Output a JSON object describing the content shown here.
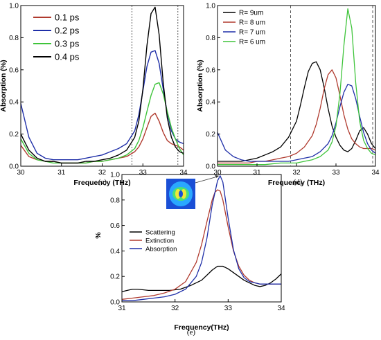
{
  "chart_data": [
    {
      "panel_label": "(c)",
      "type": "line",
      "xlabel": "Frequency (THz)",
      "ylabel": "Absorption (%)",
      "xlim": [
        30,
        34
      ],
      "ylim": [
        0,
        1.0
      ],
      "xticks": [
        "30",
        "31",
        "32",
        "33",
        "34"
      ],
      "yticks": [
        "0.0",
        "0.2",
        "0.4",
        "0.6",
        "0.8",
        "1.0"
      ],
      "reference_lines_x": [
        32.73,
        33.86
      ],
      "legend_position": "top-left",
      "series": [
        {
          "name": "0.1 ps",
          "color": "#b03a2e",
          "x": [
            30,
            30.2,
            30.4,
            30.6,
            30.8,
            31,
            31.2,
            31.4,
            31.6,
            31.8,
            32,
            32.2,
            32.4,
            32.6,
            32.8,
            32.9,
            33,
            33.1,
            33.2,
            33.3,
            33.4,
            33.5,
            33.6,
            33.7,
            33.8,
            33.9,
            34
          ],
          "y": [
            0.13,
            0.06,
            0.04,
            0.03,
            0.03,
            0.02,
            0.02,
            0.02,
            0.02,
            0.03,
            0.03,
            0.04,
            0.05,
            0.06,
            0.09,
            0.12,
            0.17,
            0.24,
            0.31,
            0.33,
            0.28,
            0.21,
            0.16,
            0.14,
            0.13,
            0.12,
            0.1
          ]
        },
        {
          "name": "0.2 ps",
          "color": "#1f2fa8",
          "x": [
            30,
            30.2,
            30.4,
            30.6,
            30.8,
            31,
            31.2,
            31.4,
            31.6,
            31.8,
            32,
            32.2,
            32.4,
            32.6,
            32.8,
            32.9,
            33,
            33.1,
            33.2,
            33.3,
            33.4,
            33.5,
            33.6,
            33.7,
            33.8,
            33.9,
            34
          ],
          "y": [
            0.39,
            0.18,
            0.08,
            0.05,
            0.04,
            0.04,
            0.04,
            0.04,
            0.05,
            0.06,
            0.07,
            0.09,
            0.11,
            0.14,
            0.22,
            0.32,
            0.47,
            0.62,
            0.71,
            0.72,
            0.64,
            0.48,
            0.33,
            0.22,
            0.17,
            0.15,
            0.14
          ]
        },
        {
          "name": "0.3 ps",
          "color": "#3ec43a",
          "x": [
            30,
            30.2,
            30.4,
            30.6,
            30.8,
            31,
            31.2,
            31.4,
            31.6,
            31.8,
            32,
            32.2,
            32.4,
            32.6,
            32.8,
            32.9,
            33,
            33.1,
            33.2,
            33.3,
            33.4,
            33.5,
            33.6,
            33.7,
            33.8,
            33.9,
            34
          ],
          "y": [
            0.17,
            0.08,
            0.04,
            0.03,
            0.02,
            0.02,
            0.02,
            0.02,
            0.02,
            0.03,
            0.03,
            0.04,
            0.05,
            0.07,
            0.11,
            0.16,
            0.24,
            0.34,
            0.44,
            0.51,
            0.52,
            0.45,
            0.34,
            0.24,
            0.17,
            0.11,
            0.07
          ]
        },
        {
          "name": "0.4 ps",
          "color": "#000000",
          "x": [
            30,
            30.2,
            30.4,
            30.6,
            30.8,
            31,
            31.2,
            31.4,
            31.6,
            31.8,
            32,
            32.2,
            32.4,
            32.6,
            32.8,
            32.9,
            33,
            33.1,
            33.2,
            33.3,
            33.4,
            33.5,
            33.6,
            33.7,
            33.8,
            33.9,
            34
          ],
          "y": [
            0.2,
            0.1,
            0.05,
            0.03,
            0.03,
            0.02,
            0.02,
            0.02,
            0.03,
            0.03,
            0.04,
            0.05,
            0.07,
            0.1,
            0.18,
            0.28,
            0.48,
            0.75,
            0.95,
            0.99,
            0.82,
            0.52,
            0.3,
            0.18,
            0.12,
            0.09,
            0.08
          ]
        }
      ]
    },
    {
      "panel_label": "(d)",
      "type": "line",
      "xlabel": "Frequency (THz)",
      "ylabel": "Absorption (%)",
      "xlim": [
        30,
        34
      ],
      "ylim": [
        0,
        1.0
      ],
      "xticks": [
        "30",
        "31",
        "32",
        "33",
        "34"
      ],
      "yticks": [
        "0.0",
        "0.2",
        "0.4",
        "0.6",
        "0.8",
        "1.0"
      ],
      "reference_lines_x": [
        31.85,
        33.93
      ],
      "legend_position": "top-left",
      "series": [
        {
          "name": "R= 9um",
          "color": "#000000",
          "x": [
            30,
            30.2,
            30.4,
            30.6,
            30.8,
            31,
            31.2,
            31.4,
            31.6,
            31.8,
            32,
            32.1,
            32.2,
            32.3,
            32.4,
            32.5,
            32.6,
            32.7,
            32.8,
            32.9,
            33,
            33.1,
            33.2,
            33.3,
            33.4,
            33.5,
            33.6,
            33.7,
            33.8,
            33.9,
            34
          ],
          "y": [
            0.03,
            0.03,
            0.03,
            0.03,
            0.04,
            0.05,
            0.07,
            0.09,
            0.12,
            0.18,
            0.28,
            0.38,
            0.49,
            0.59,
            0.64,
            0.65,
            0.6,
            0.49,
            0.36,
            0.25,
            0.18,
            0.13,
            0.1,
            0.09,
            0.11,
            0.16,
            0.22,
            0.24,
            0.2,
            0.14,
            0.11
          ]
        },
        {
          "name": "R= 8 um",
          "color": "#b03a2e",
          "x": [
            30,
            30.2,
            30.4,
            30.6,
            30.8,
            31,
            31.2,
            31.4,
            31.6,
            31.8,
            32,
            32.2,
            32.4,
            32.5,
            32.6,
            32.7,
            32.8,
            32.9,
            33,
            33.1,
            33.2,
            33.3,
            33.4,
            33.5,
            33.6,
            33.7,
            33.8,
            33.9,
            34
          ],
          "y": [
            0.02,
            0.02,
            0.02,
            0.02,
            0.02,
            0.03,
            0.03,
            0.04,
            0.05,
            0.06,
            0.08,
            0.12,
            0.19,
            0.26,
            0.36,
            0.48,
            0.57,
            0.6,
            0.55,
            0.44,
            0.32,
            0.23,
            0.17,
            0.14,
            0.12,
            0.11,
            0.11,
            0.11,
            0.1
          ]
        },
        {
          "name": "R= 7 um",
          "color": "#1f2fa8",
          "x": [
            30,
            30.2,
            30.4,
            30.6,
            30.8,
            31,
            31.2,
            31.4,
            31.6,
            31.8,
            32,
            32.2,
            32.4,
            32.6,
            32.8,
            32.9,
            33,
            33.1,
            33.2,
            33.3,
            33.4,
            33.5,
            33.6,
            33.7,
            33.8,
            33.9,
            34
          ],
          "y": [
            0.21,
            0.1,
            0.06,
            0.04,
            0.03,
            0.03,
            0.03,
            0.03,
            0.03,
            0.03,
            0.04,
            0.05,
            0.06,
            0.09,
            0.14,
            0.19,
            0.27,
            0.37,
            0.46,
            0.51,
            0.5,
            0.42,
            0.31,
            0.21,
            0.14,
            0.1,
            0.08
          ]
        },
        {
          "name": "R= 6 um",
          "color": "#3ec43a",
          "x": [
            30,
            30.4,
            30.8,
            31.2,
            31.6,
            32,
            32.2,
            32.4,
            32.6,
            32.8,
            32.9,
            33,
            33.1,
            33.2,
            33.3,
            33.4,
            33.5,
            33.6,
            33.7,
            33.8,
            33.9,
            34
          ],
          "y": [
            0.01,
            0.01,
            0.01,
            0.01,
            0.02,
            0.02,
            0.03,
            0.04,
            0.06,
            0.1,
            0.15,
            0.25,
            0.45,
            0.75,
            0.98,
            0.86,
            0.52,
            0.28,
            0.16,
            0.11,
            0.08,
            0.07
          ]
        }
      ]
    },
    {
      "panel_label": "(e)",
      "type": "line",
      "xlabel": "Frequency(THz)",
      "ylabel": "%",
      "xlim": [
        31,
        34
      ],
      "ylim": [
        0,
        1.0
      ],
      "xticks": [
        "31",
        "32",
        "33",
        "34"
      ],
      "yticks": [
        "0.0",
        "0.2",
        "0.4",
        "0.6",
        "0.8",
        "1.0"
      ],
      "legend_position": "center-left",
      "inset": "field-distribution map with arrow pointing to absorption peak",
      "series": [
        {
          "name": "Scattering",
          "color": "#000000",
          "x": [
            31,
            31.1,
            31.2,
            31.3,
            31.5,
            31.7,
            31.9,
            32.1,
            32.3,
            32.5,
            32.6,
            32.7,
            32.8,
            32.85,
            32.9,
            33,
            33.1,
            33.2,
            33.3,
            33.4,
            33.5,
            33.6,
            33.7,
            33.8,
            33.9,
            34
          ],
          "y": [
            0.08,
            0.09,
            0.1,
            0.1,
            0.09,
            0.09,
            0.09,
            0.1,
            0.13,
            0.17,
            0.21,
            0.25,
            0.28,
            0.28,
            0.28,
            0.26,
            0.23,
            0.2,
            0.17,
            0.15,
            0.13,
            0.12,
            0.13,
            0.15,
            0.18,
            0.22
          ]
        },
        {
          "name": "Extinction",
          "color": "#b03a2e",
          "x": [
            31,
            31.2,
            31.4,
            31.6,
            31.8,
            32,
            32.2,
            32.4,
            32.5,
            32.6,
            32.7,
            32.75,
            32.8,
            32.85,
            32.9,
            33,
            33.1,
            33.2,
            33.3,
            33.4,
            33.5,
            33.6,
            33.7,
            33.8,
            34
          ],
          "y": [
            0.02,
            0.03,
            0.04,
            0.05,
            0.07,
            0.1,
            0.16,
            0.31,
            0.45,
            0.63,
            0.8,
            0.86,
            0.88,
            0.87,
            0.8,
            0.59,
            0.4,
            0.28,
            0.21,
            0.17,
            0.15,
            0.14,
            0.14,
            0.14,
            0.14
          ]
        },
        {
          "name": "Absorption",
          "color": "#1f2fa8",
          "x": [
            31,
            31.2,
            31.4,
            31.6,
            31.8,
            32,
            32.2,
            32.4,
            32.5,
            32.6,
            32.7,
            32.8,
            32.85,
            32.9,
            33,
            33.1,
            33.2,
            33.3,
            33.4,
            33.5,
            33.6,
            33.7,
            33.8,
            34
          ],
          "y": [
            0.01,
            0.01,
            0.02,
            0.03,
            0.04,
            0.06,
            0.1,
            0.2,
            0.31,
            0.5,
            0.76,
            0.95,
            0.99,
            0.94,
            0.66,
            0.41,
            0.26,
            0.19,
            0.16,
            0.15,
            0.14,
            0.14,
            0.14,
            0.14
          ]
        }
      ]
    }
  ]
}
